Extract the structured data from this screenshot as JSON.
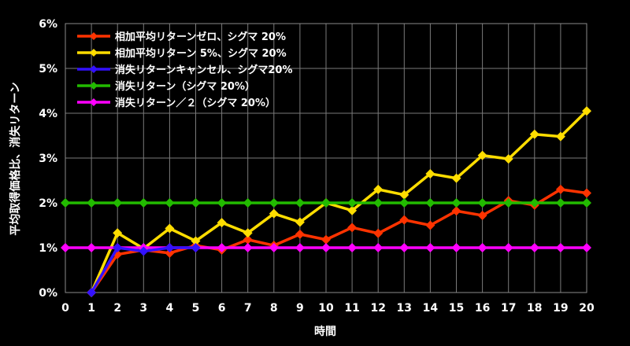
{
  "chart_data": {
    "type": "line",
    "xlabel": "時間",
    "ylabel": "平均取得価格比、消失リターン",
    "x": [
      0,
      1,
      2,
      3,
      4,
      5,
      6,
      7,
      8,
      9,
      10,
      11,
      12,
      13,
      14,
      15,
      16,
      17,
      18,
      19,
      20
    ],
    "xlim": [
      0,
      20
    ],
    "ylim": [
      0,
      6
    ],
    "y_ticks": [
      "0%",
      "1%",
      "2%",
      "3%",
      "4%",
      "5%",
      "6%"
    ],
    "grid": true,
    "legend_position": "top-left",
    "series": [
      {
        "name": "相加平均リターンゼロ、シグマ 20%",
        "color": "#ff3300",
        "x": [
          1,
          2,
          3,
          4,
          5,
          6,
          7,
          8,
          9,
          10,
          11,
          12,
          13,
          14,
          15,
          16,
          17,
          18,
          19,
          20
        ],
        "values": [
          0,
          0.85,
          0.95,
          0.88,
          1.05,
          0.95,
          1.18,
          1.05,
          1.3,
          1.18,
          1.45,
          1.32,
          1.62,
          1.5,
          1.82,
          1.72,
          2.05,
          1.95,
          2.3,
          2.22
        ]
      },
      {
        "name": "相加平均リターン 5%、シグマ 20%",
        "color": "#ffdd00",
        "x": [
          1,
          2,
          3,
          4,
          5,
          6,
          7,
          8,
          9,
          10,
          11,
          12,
          13,
          14,
          15,
          16,
          17,
          18,
          19,
          20
        ],
        "values": [
          0,
          1.33,
          0.98,
          1.43,
          1.15,
          1.56,
          1.33,
          1.76,
          1.57,
          2.0,
          1.83,
          2.3,
          2.18,
          2.65,
          2.55,
          3.06,
          2.98,
          3.53,
          3.48,
          4.05
        ]
      },
      {
        "name": "消失リターンキャンセル、シグマ20%",
        "color": "#3311ff",
        "x": [
          1,
          2,
          3,
          4,
          5
        ],
        "values": [
          0,
          1.0,
          0.92,
          1.0,
          1.0
        ]
      },
      {
        "name": "消失リターン（シグマ 20%）",
        "color": "#22bb00",
        "x": [
          0,
          1,
          2,
          3,
          4,
          5,
          6,
          7,
          8,
          9,
          10,
          11,
          12,
          13,
          14,
          15,
          16,
          17,
          18,
          19,
          20
        ],
        "values": [
          2,
          2,
          2,
          2,
          2,
          2,
          2,
          2,
          2,
          2,
          2,
          2,
          2,
          2,
          2,
          2,
          2,
          2,
          2,
          2,
          2
        ]
      },
      {
        "name": "消失リターン／２（シグマ 20%）",
        "color": "#ff00ff",
        "x": [
          0,
          1,
          2,
          3,
          4,
          5,
          6,
          7,
          8,
          9,
          10,
          11,
          12,
          13,
          14,
          15,
          16,
          17,
          18,
          19,
          20
        ],
        "values": [
          1,
          1,
          1,
          1,
          1,
          1,
          1,
          1,
          1,
          1,
          1,
          1,
          1,
          1,
          1,
          1,
          1,
          1,
          1,
          1,
          1
        ]
      }
    ]
  }
}
